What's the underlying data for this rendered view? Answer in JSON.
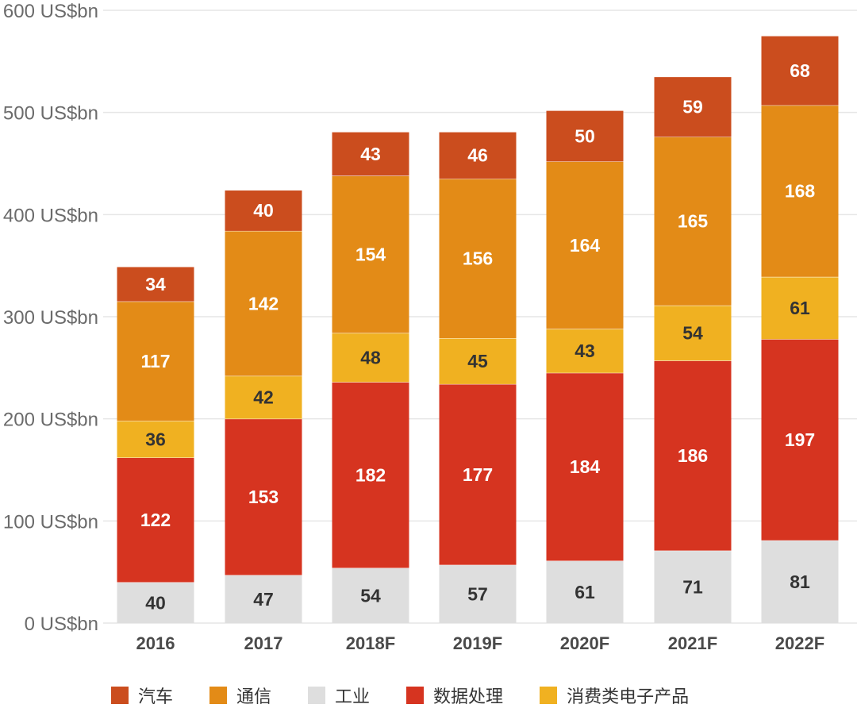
{
  "chart_data": {
    "type": "bar",
    "stacked": true,
    "categories": [
      "2016",
      "2017",
      "2018F",
      "2019F",
      "2020F",
      "2021F",
      "2022F"
    ],
    "series": [
      {
        "name": "工业",
        "color": "#dedede",
        "label_color": "#333333",
        "values": [
          40,
          47,
          54,
          57,
          61,
          71,
          81
        ]
      },
      {
        "name": "数据处理",
        "color": "#d63420",
        "label_color": "#ffffff",
        "values": [
          122,
          153,
          182,
          177,
          184,
          186,
          197
        ]
      },
      {
        "name": "消费类电子产品",
        "color": "#f0b121",
        "label_color": "#333333",
        "values": [
          36,
          42,
          48,
          45,
          43,
          54,
          61
        ]
      },
      {
        "name": "通信",
        "color": "#e38b17",
        "label_color": "#ffffff",
        "values": [
          117,
          142,
          154,
          156,
          164,
          165,
          168
        ]
      },
      {
        "name": "汽车",
        "color": "#cb4d1e",
        "label_color": "#ffffff",
        "values": [
          34,
          40,
          43,
          46,
          50,
          59,
          68
        ]
      }
    ],
    "y_ticks": [
      "0 US$bn",
      "100 US$bn",
      "200 US$bn",
      "300 US$bn",
      "400 US$bn",
      "500 US$bn",
      "600 US$bn"
    ],
    "ylim": [
      0,
      600
    ],
    "legend_order": [
      "汽车",
      "通信",
      "工业",
      "数据处理",
      "消费类电子产品"
    ],
    "grid": true,
    "legend_position": "bottom"
  }
}
